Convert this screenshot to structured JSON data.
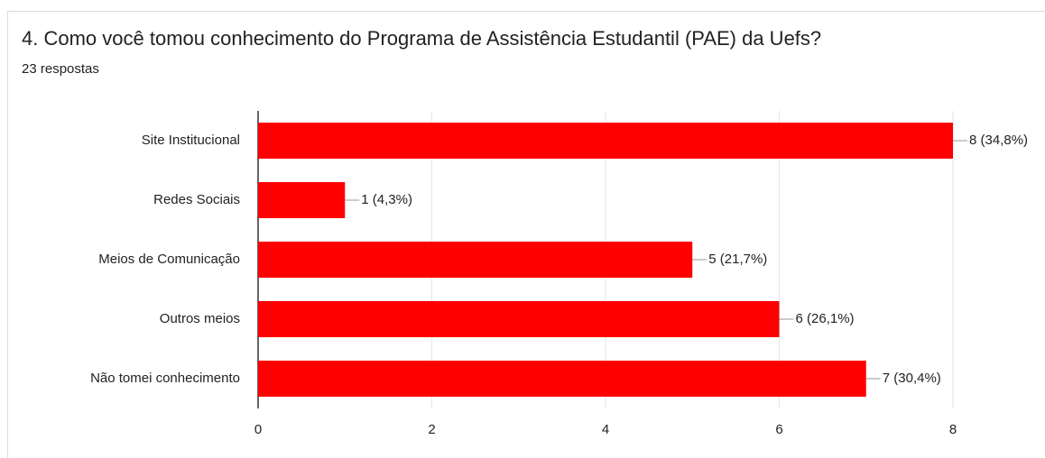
{
  "chart_data": {
    "type": "bar",
    "orientation": "horizontal",
    "title": "4. Como você tomou conhecimento do Programa de Assistência Estudantil (PAE) da Uefs?",
    "subtitle": "23 respostas",
    "categories": [
      "Site Institucional",
      "Redes Sociais",
      "Meios de Comunicação",
      "Outros meios",
      "Não tomei conhecimento"
    ],
    "values": [
      8,
      1,
      5,
      6,
      7
    ],
    "value_labels": [
      "8 (34,8%)",
      "1 (4,3%)",
      "5 (21,7%)",
      "6 (26,1%)",
      "7 (30,4%)"
    ],
    "color": "#ff0000",
    "xlim": [
      0,
      8
    ],
    "xticks": [
      0,
      2,
      4,
      6,
      8
    ],
    "grid": true
  }
}
